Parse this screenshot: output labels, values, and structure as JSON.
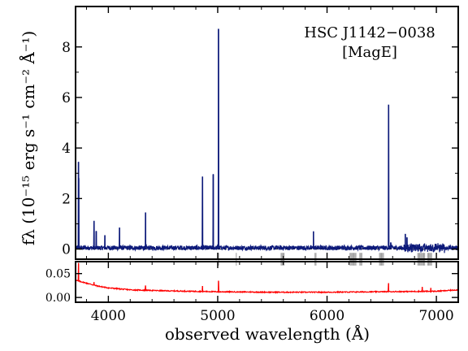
{
  "chart_data": [
    {
      "panel": "top",
      "type": "line",
      "annotation_lines": [
        "HSC J1142−0038",
        "[MagE]"
      ],
      "ylabel": "fλ (10⁻¹⁵ erg s⁻¹ cm⁻² Å⁻¹)",
      "xlim": [
        3700,
        7200
      ],
      "ylim": [
        -0.4,
        9.6
      ],
      "yticks": [
        0,
        2,
        4,
        6,
        8
      ],
      "grid": false,
      "color": "#0d1a7a",
      "emission_lines": [
        {
          "x": 3727,
          "y": 3.45
        },
        {
          "x": 3729,
          "y": 2.8
        },
        {
          "x": 3869,
          "y": 1.1
        },
        {
          "x": 3889,
          "y": 0.7
        },
        {
          "x": 3968,
          "y": 0.55
        },
        {
          "x": 4102,
          "y": 0.85
        },
        {
          "x": 4340,
          "y": 1.45
        },
        {
          "x": 4861,
          "y": 2.85
        },
        {
          "x": 4959,
          "y": 2.95
        },
        {
          "x": 5007,
          "y": 8.7
        },
        {
          "x": 5876,
          "y": 0.7
        },
        {
          "x": 6563,
          "y": 5.7
        },
        {
          "x": 6583,
          "y": 0.25
        },
        {
          "x": 6716,
          "y": 0.6
        },
        {
          "x": 6731,
          "y": 0.45
        }
      ],
      "sky_line_bands": [
        {
          "x": 5008,
          "dir": "down"
        },
        {
          "x": 5170,
          "dir": "down"
        },
        {
          "x": 5580,
          "dir": "down",
          "n": 4
        },
        {
          "x": 5890,
          "dir": "down",
          "n": 2
        },
        {
          "x": 6210,
          "dir": "down",
          "n": 7
        },
        {
          "x": 6300,
          "dir": "down",
          "n": 3
        },
        {
          "x": 6480,
          "dir": "down",
          "n": 5
        },
        {
          "x": 6830,
          "dir": "down",
          "n": 8
        },
        {
          "x": 6920,
          "dir": "down",
          "n": 5
        }
      ],
      "sky_band_axis_limit": 7000
    },
    {
      "panel": "bottom",
      "type": "line",
      "xlabel": "observed wavelength (Å)",
      "xlim": [
        3700,
        7200
      ],
      "xticks": [
        4000,
        5000,
        6000,
        7000
      ],
      "ylim": [
        -0.01,
        0.075
      ],
      "yticks": [
        0.0,
        0.05
      ],
      "ytick_labels": [
        "0.00",
        "0.05"
      ],
      "color": "#ff0000",
      "error_curve": [
        {
          "x": 3700,
          "y": 0.036
        },
        {
          "x": 3800,
          "y": 0.03
        },
        {
          "x": 3900,
          "y": 0.024
        },
        {
          "x": 4000,
          "y": 0.02
        },
        {
          "x": 4200,
          "y": 0.016
        },
        {
          "x": 4500,
          "y": 0.014
        },
        {
          "x": 5000,
          "y": 0.012
        },
        {
          "x": 5500,
          "y": 0.011
        },
        {
          "x": 6000,
          "y": 0.011
        },
        {
          "x": 6500,
          "y": 0.012
        },
        {
          "x": 7000,
          "y": 0.013
        },
        {
          "x": 7200,
          "y": 0.016
        }
      ],
      "error_spikes": [
        {
          "x": 3727,
          "y": 0.072
        },
        {
          "x": 3869,
          "y": 0.032
        },
        {
          "x": 4340,
          "y": 0.025
        },
        {
          "x": 4861,
          "y": 0.024
        },
        {
          "x": 5007,
          "y": 0.035
        },
        {
          "x": 6563,
          "y": 0.03
        },
        {
          "x": 6870,
          "y": 0.022
        },
        {
          "x": 6950,
          "y": 0.02
        }
      ]
    }
  ]
}
